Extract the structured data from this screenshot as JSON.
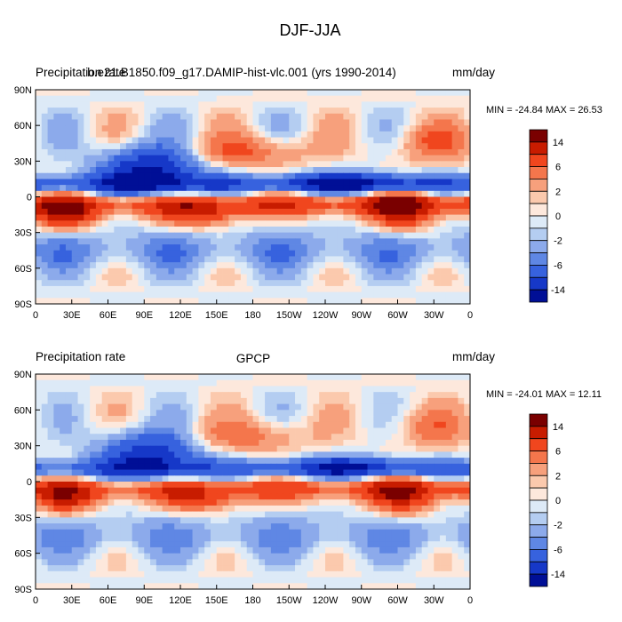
{
  "figure": {
    "title": "DJF-JJA"
  },
  "chart_data": [
    {
      "type": "heatmap",
      "variable": "Precipitation rate",
      "case": "b.e21.B1850.f09_g17.DAMIP-hist-vlc.001 (yrs 1990-2014)",
      "units": "mm/day",
      "stats": "MIN = -24.84 MAX =  26.53",
      "x_tick_labels": [
        "0",
        "30E",
        "60E",
        "90E",
        "120E",
        "150E",
        "180",
        "150W",
        "120W",
        "90W",
        "60W",
        "30W",
        "0"
      ],
      "y_tick_labels": [
        "90N",
        "60N",
        "30N",
        "0",
        "30S",
        "60S",
        "90S"
      ],
      "xlim": [
        0,
        360
      ],
      "ylim": [
        -90,
        90
      ]
    },
    {
      "type": "heatmap",
      "variable": "Precipitation rate",
      "case": "GPCP",
      "units": "mm/day",
      "stats": "MIN = -24.01 MAX =  12.11",
      "x_tick_labels": [
        "0",
        "30E",
        "60E",
        "90E",
        "120E",
        "150E",
        "180",
        "150W",
        "120W",
        "90W",
        "60W",
        "30W",
        "0"
      ],
      "y_tick_labels": [
        "90N",
        "60N",
        "30N",
        "0",
        "30S",
        "60S",
        "90S"
      ],
      "xlim": [
        0,
        360
      ],
      "ylim": [
        -90,
        90
      ]
    }
  ],
  "colorbar": {
    "labels": [
      "14",
      "6",
      "2",
      "0",
      "-2",
      "-6",
      "-14"
    ],
    "colors": [
      "#7a0000",
      "#c81c00",
      "#f0461e",
      "#f4764c",
      "#f7a07c",
      "#fbc9ad",
      "#fde8dc",
      "#ddeaf7",
      "#b4cdf1",
      "#8caaeb",
      "#5f87e4",
      "#3762de",
      "#1638c8",
      "#000f96"
    ]
  }
}
